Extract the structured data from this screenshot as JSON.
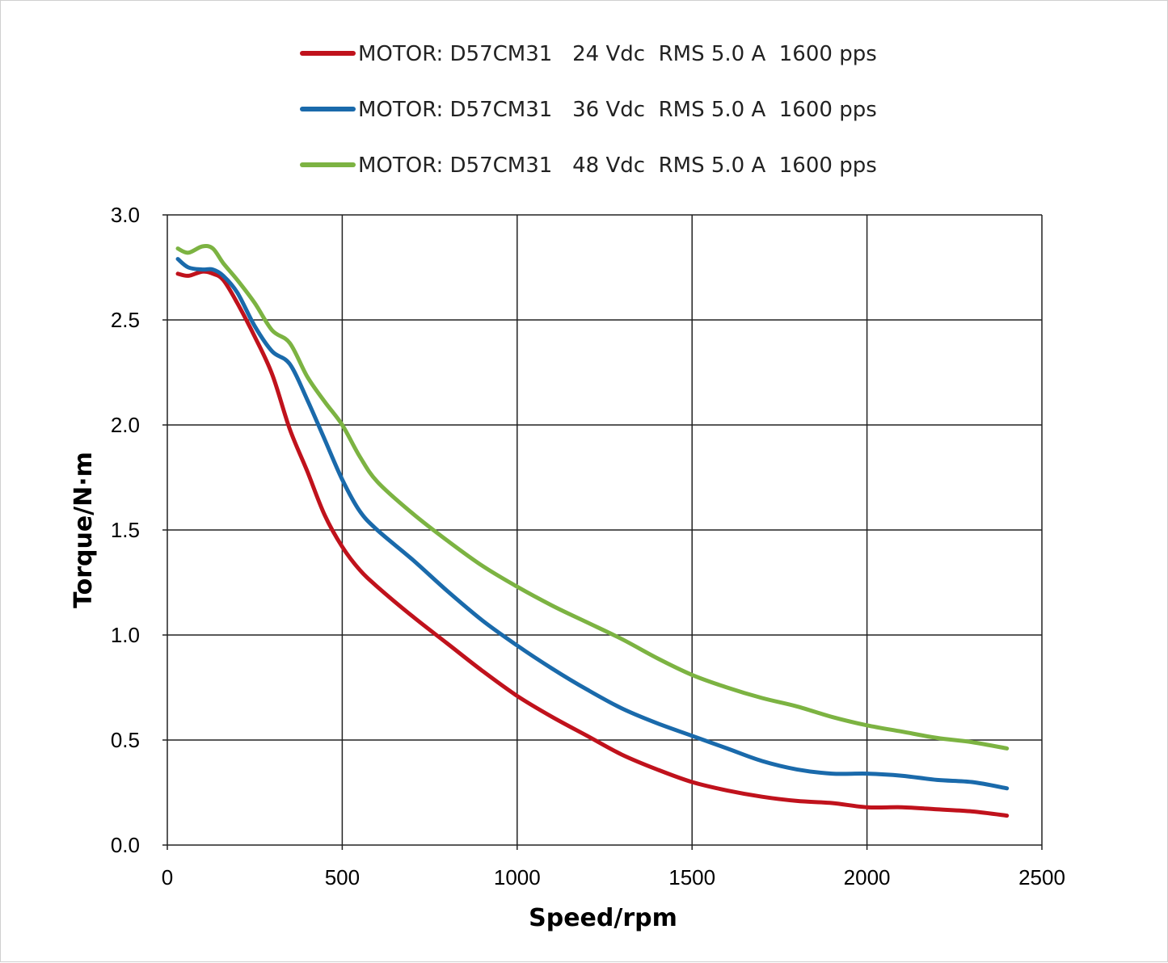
{
  "chart_data": {
    "type": "line",
    "title": "",
    "xlabel": "Speed/rpm",
    "ylabel": "Torque/N·m",
    "xlim": [
      0,
      2500
    ],
    "ylim": [
      0,
      3.0
    ],
    "x_ticks": [
      0,
      500,
      1000,
      1500,
      2000,
      2500
    ],
    "y_ticks": [
      0.0,
      0.5,
      1.0,
      1.5,
      2.0,
      2.5,
      3.0
    ],
    "x_tick_labels": [
      "0",
      "500",
      "1000",
      "1500",
      "2000",
      "2500"
    ],
    "y_tick_labels": [
      "0.0",
      "0.5",
      "1.0",
      "1.5",
      "2.0",
      "2.5",
      "3.0"
    ],
    "grid": true,
    "legend_position": "top-center",
    "series": [
      {
        "name": "MOTOR: D57CM31   24 Vdc  RMS 5.0 A  1600 pps",
        "color": "#c0121c",
        "points": [
          [
            30,
            2.72
          ],
          [
            60,
            2.71
          ],
          [
            100,
            2.73
          ],
          [
            130,
            2.72
          ],
          [
            160,
            2.69
          ],
          [
            200,
            2.58
          ],
          [
            250,
            2.42
          ],
          [
            300,
            2.24
          ],
          [
            350,
            1.98
          ],
          [
            400,
            1.78
          ],
          [
            450,
            1.57
          ],
          [
            500,
            1.42
          ],
          [
            550,
            1.31
          ],
          [
            600,
            1.23
          ],
          [
            700,
            1.09
          ],
          [
            800,
            0.96
          ],
          [
            900,
            0.83
          ],
          [
            1000,
            0.71
          ],
          [
            1100,
            0.61
          ],
          [
            1200,
            0.52
          ],
          [
            1300,
            0.43
          ],
          [
            1400,
            0.36
          ],
          [
            1500,
            0.3
          ],
          [
            1600,
            0.26
          ],
          [
            1700,
            0.23
          ],
          [
            1800,
            0.21
          ],
          [
            1900,
            0.2
          ],
          [
            2000,
            0.18
          ],
          [
            2100,
            0.18
          ],
          [
            2200,
            0.17
          ],
          [
            2300,
            0.16
          ],
          [
            2400,
            0.14
          ]
        ]
      },
      {
        "name": "MOTOR: D57CM31   36 Vdc  RMS 5.0 A  1600 pps",
        "color": "#1a6aab",
        "points": [
          [
            30,
            2.79
          ],
          [
            60,
            2.75
          ],
          [
            100,
            2.74
          ],
          [
            130,
            2.74
          ],
          [
            160,
            2.71
          ],
          [
            200,
            2.63
          ],
          [
            250,
            2.47
          ],
          [
            300,
            2.35
          ],
          [
            350,
            2.29
          ],
          [
            400,
            2.12
          ],
          [
            450,
            1.93
          ],
          [
            500,
            1.74
          ],
          [
            550,
            1.59
          ],
          [
            600,
            1.5
          ],
          [
            700,
            1.36
          ],
          [
            800,
            1.21
          ],
          [
            900,
            1.07
          ],
          [
            1000,
            0.95
          ],
          [
            1100,
            0.84
          ],
          [
            1200,
            0.74
          ],
          [
            1300,
            0.65
          ],
          [
            1400,
            0.58
          ],
          [
            1500,
            0.52
          ],
          [
            1600,
            0.46
          ],
          [
            1700,
            0.4
          ],
          [
            1800,
            0.36
          ],
          [
            1900,
            0.34
          ],
          [
            2000,
            0.34
          ],
          [
            2100,
            0.33
          ],
          [
            2200,
            0.31
          ],
          [
            2300,
            0.3
          ],
          [
            2400,
            0.27
          ]
        ]
      },
      {
        "name": "MOTOR: D57CM31   48 Vdc  RMS 5.0 A  1600 pps",
        "color": "#7cb342",
        "points": [
          [
            30,
            2.84
          ],
          [
            60,
            2.82
          ],
          [
            100,
            2.85
          ],
          [
            130,
            2.84
          ],
          [
            160,
            2.77
          ],
          [
            200,
            2.69
          ],
          [
            250,
            2.58
          ],
          [
            300,
            2.45
          ],
          [
            350,
            2.39
          ],
          [
            400,
            2.23
          ],
          [
            450,
            2.11
          ],
          [
            500,
            2.0
          ],
          [
            550,
            1.85
          ],
          [
            600,
            1.73
          ],
          [
            700,
            1.58
          ],
          [
            800,
            1.45
          ],
          [
            900,
            1.33
          ],
          [
            1000,
            1.23
          ],
          [
            1100,
            1.14
          ],
          [
            1200,
            1.06
          ],
          [
            1300,
            0.98
          ],
          [
            1400,
            0.89
          ],
          [
            1500,
            0.81
          ],
          [
            1600,
            0.75
          ],
          [
            1700,
            0.7
          ],
          [
            1800,
            0.66
          ],
          [
            1900,
            0.61
          ],
          [
            2000,
            0.57
          ],
          [
            2100,
            0.54
          ],
          [
            2200,
            0.51
          ],
          [
            2300,
            0.49
          ],
          [
            2400,
            0.46
          ]
        ]
      }
    ]
  }
}
